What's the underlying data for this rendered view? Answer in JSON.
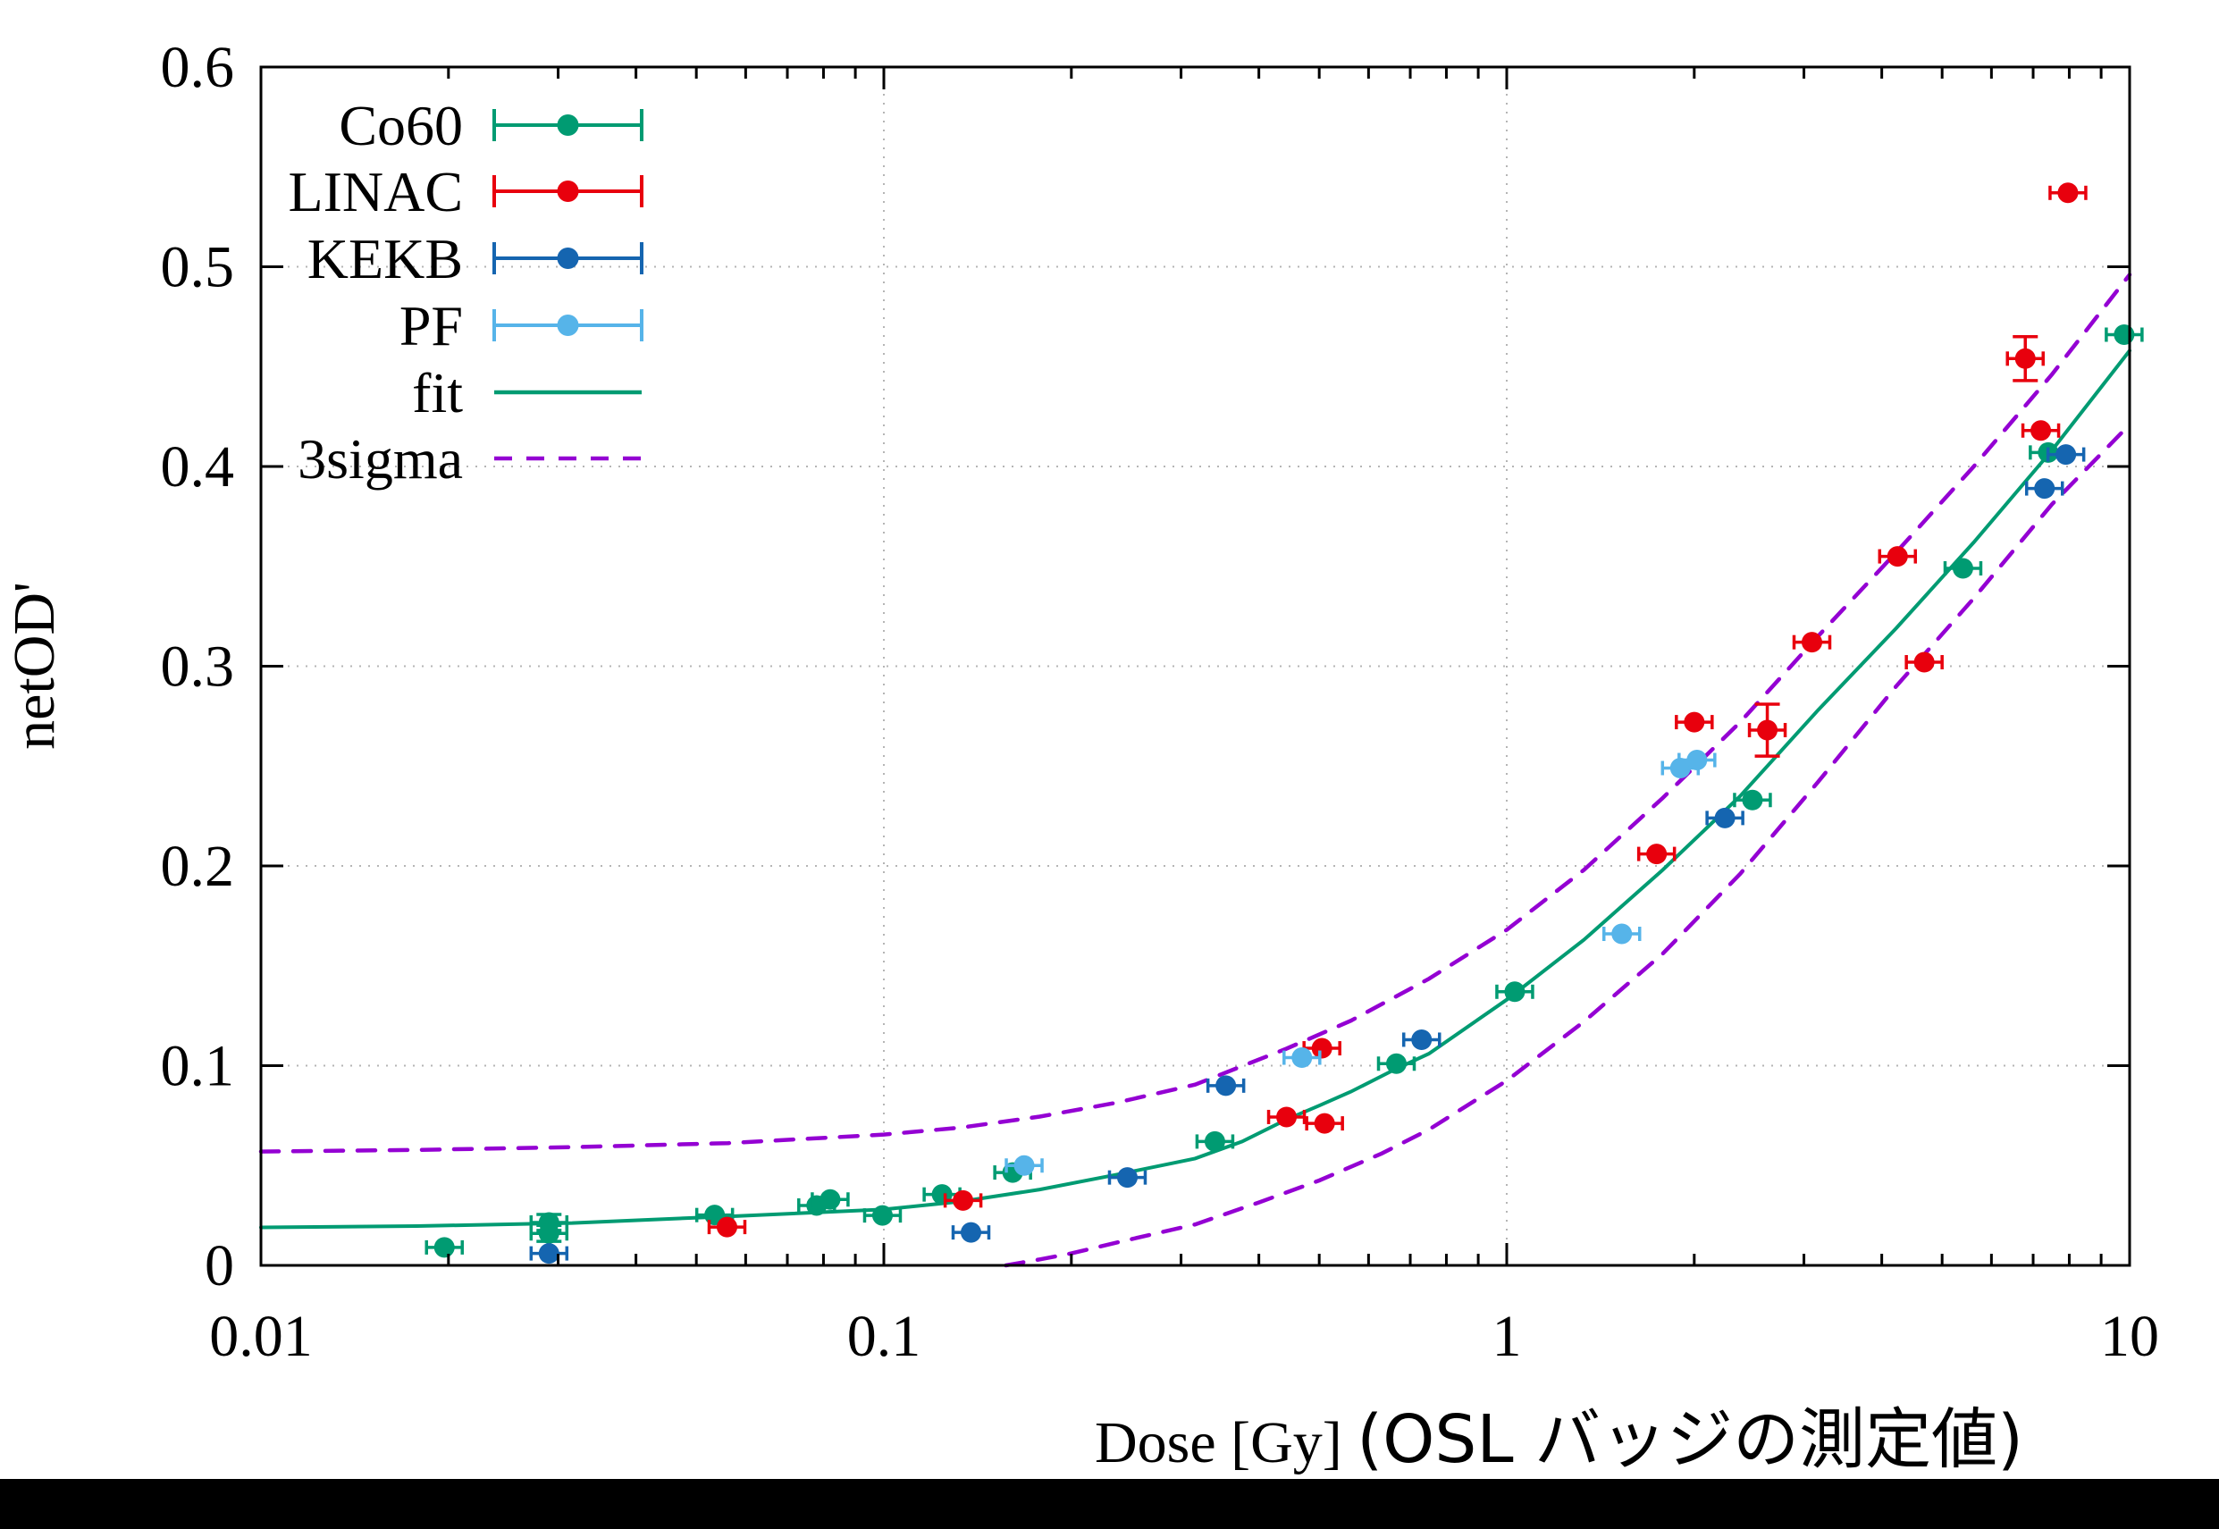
{
  "chart_data": {
    "type": "scatter",
    "title": "",
    "xlabel": "Dose [Gy]",
    "xlabel_suffix": "(OSL バッジの測定値)",
    "ylabel": "netOD'",
    "x_scale": "log",
    "xlim": [
      0.01,
      10
    ],
    "ylim": [
      0,
      0.6
    ],
    "x_ticks": [
      {
        "value": 0.01,
        "label": "0.01"
      },
      {
        "value": 0.1,
        "label": "0.1"
      },
      {
        "value": 1,
        "label": "1"
      },
      {
        "value": 10,
        "label": "10"
      }
    ],
    "y_ticks": [
      {
        "value": 0.0,
        "label": "0"
      },
      {
        "value": 0.1,
        "label": "0.1"
      },
      {
        "value": 0.2,
        "label": "0.2"
      },
      {
        "value": 0.3,
        "label": "0.3"
      },
      {
        "value": 0.4,
        "label": "0.4"
      },
      {
        "value": 0.5,
        "label": "0.5"
      },
      {
        "value": 0.6,
        "label": "0.6"
      }
    ],
    "grid": true,
    "legend_position": "top-left-inside",
    "legend_order": [
      "Co60",
      "LINAC",
      "KEKB",
      "PF",
      "fit",
      "3sigma"
    ],
    "series": [
      {
        "name": "Co60",
        "marker": "circle-with-xerr",
        "color": "#009B72",
        "points": [
          [
            0.0197,
            0.009
          ],
          [
            0.029,
            0.0215,
            0.004
          ],
          [
            0.029,
            0.016,
            0.004
          ],
          [
            0.0535,
            0.0252
          ],
          [
            0.078,
            0.03
          ],
          [
            0.082,
            0.033
          ],
          [
            0.0995,
            0.025
          ],
          [
            0.124,
            0.0355
          ],
          [
            0.161,
            0.0465
          ],
          [
            0.34,
            0.062
          ],
          [
            0.665,
            0.101
          ],
          [
            1.03,
            0.137
          ],
          [
            2.48,
            0.233
          ],
          [
            5.4,
            0.349
          ],
          [
            7.4,
            0.407
          ],
          [
            9.8,
            0.466
          ]
        ]
      },
      {
        "name": "LINAC",
        "marker": "circle-with-xerr",
        "color": "#E8000D",
        "points": [
          [
            0.056,
            0.0192
          ],
          [
            0.134,
            0.0325
          ],
          [
            0.443,
            0.0743
          ],
          [
            0.51,
            0.0711
          ],
          [
            0.505,
            0.1087
          ],
          [
            1.74,
            0.206
          ],
          [
            2.0,
            0.272
          ],
          [
            2.62,
            0.268,
            0.013
          ],
          [
            3.09,
            0.312
          ],
          [
            4.24,
            0.355
          ],
          [
            4.68,
            0.302
          ],
          [
            6.8,
            0.454,
            0.011
          ],
          [
            7.2,
            0.418
          ],
          [
            7.96,
            0.537
          ]
        ]
      },
      {
        "name": "KEKB",
        "marker": "circle-with-xerr",
        "color": "#1565B0",
        "points": [
          [
            0.029,
            0.006
          ],
          [
            0.138,
            0.0165
          ],
          [
            0.246,
            0.044
          ],
          [
            0.354,
            0.09
          ],
          [
            0.73,
            0.113
          ],
          [
            2.24,
            0.224
          ],
          [
            7.3,
            0.389
          ],
          [
            7.9,
            0.406
          ]
        ]
      },
      {
        "name": "PF",
        "marker": "circle-with-xerr",
        "color": "#56B4E9",
        "points": [
          [
            0.168,
            0.05
          ],
          [
            0.469,
            0.104
          ],
          [
            1.53,
            0.166
          ],
          [
            1.9,
            0.249
          ],
          [
            2.02,
            0.253
          ]
        ]
      }
    ],
    "curves": [
      {
        "name": "fit",
        "style": "solid",
        "color": "#009B72",
        "points": [
          [
            0.01,
            0.019
          ],
          [
            0.0178,
            0.0197
          ],
          [
            0.0316,
            0.0212
          ],
          [
            0.0562,
            0.0245
          ],
          [
            0.1,
            0.028
          ],
          [
            0.133,
            0.032
          ],
          [
            0.178,
            0.038
          ],
          [
            0.237,
            0.0455
          ],
          [
            0.316,
            0.0535
          ],
          [
            0.376,
            0.062
          ],
          [
            0.443,
            0.073
          ],
          [
            0.5,
            0.08
          ],
          [
            0.562,
            0.087
          ],
          [
            0.66,
            0.098
          ],
          [
            0.75,
            0.106
          ],
          [
            1.0,
            0.133
          ],
          [
            1.33,
            0.163
          ],
          [
            1.78,
            0.198
          ],
          [
            2.37,
            0.235
          ],
          [
            3.16,
            0.278
          ],
          [
            4.22,
            0.319
          ],
          [
            5.62,
            0.362
          ],
          [
            7.5,
            0.408
          ],
          [
            10,
            0.458
          ]
        ]
      },
      {
        "name": "3sigma",
        "band": "upper",
        "style": "dashed",
        "color": "#9400D3",
        "points": [
          [
            0.01,
            0.057
          ],
          [
            0.0178,
            0.0578
          ],
          [
            0.0316,
            0.0592
          ],
          [
            0.0562,
            0.0612
          ],
          [
            0.1,
            0.0655
          ],
          [
            0.133,
            0.069
          ],
          [
            0.178,
            0.0745
          ],
          [
            0.237,
            0.0815
          ],
          [
            0.316,
            0.0905
          ],
          [
            0.443,
            0.1085
          ],
          [
            0.562,
            0.1225
          ],
          [
            0.75,
            0.1435
          ],
          [
            1.0,
            0.168
          ],
          [
            1.33,
            0.198
          ],
          [
            1.78,
            0.234
          ],
          [
            2.37,
            0.272
          ],
          [
            3.16,
            0.315
          ],
          [
            4.22,
            0.357
          ],
          [
            5.62,
            0.4
          ],
          [
            7.5,
            0.446
          ],
          [
            10,
            0.496
          ]
        ]
      },
      {
        "name": "3sigma",
        "band": "lower",
        "style": "dashed",
        "color": "#9400D3",
        "points": [
          [
            0.157,
            0.0
          ],
          [
            0.178,
            0.003
          ],
          [
            0.2,
            0.006
          ],
          [
            0.237,
            0.0115
          ],
          [
            0.316,
            0.0205
          ],
          [
            0.4,
            0.0315
          ],
          [
            0.5,
            0.0425
          ],
          [
            0.63,
            0.056
          ],
          [
            0.75,
            0.068
          ],
          [
            1.0,
            0.0925
          ],
          [
            1.33,
            0.122
          ],
          [
            1.78,
            0.156
          ],
          [
            2.37,
            0.196
          ],
          [
            3.16,
            0.242
          ],
          [
            4.22,
            0.29
          ],
          [
            5.62,
            0.334
          ],
          [
            7.5,
            0.381
          ],
          [
            10,
            0.421
          ]
        ]
      }
    ],
    "legend": [
      {
        "label": "Co60",
        "sample": "errorbar",
        "color": "#009B72"
      },
      {
        "label": "LINAC",
        "sample": "errorbar",
        "color": "#E8000D"
      },
      {
        "label": "KEKB",
        "sample": "errorbar",
        "color": "#1565B0"
      },
      {
        "label": "PF",
        "sample": "errorbar",
        "color": "#56B4E9"
      },
      {
        "label": "fit",
        "sample": "line",
        "color": "#009B72"
      },
      {
        "label": "3sigma",
        "sample": "dashed",
        "color": "#9400D3"
      }
    ]
  },
  "decorations": {
    "bottom_bar_color": "#000000",
    "grid_color": "#b5b5b5",
    "border_color": "#000000"
  }
}
